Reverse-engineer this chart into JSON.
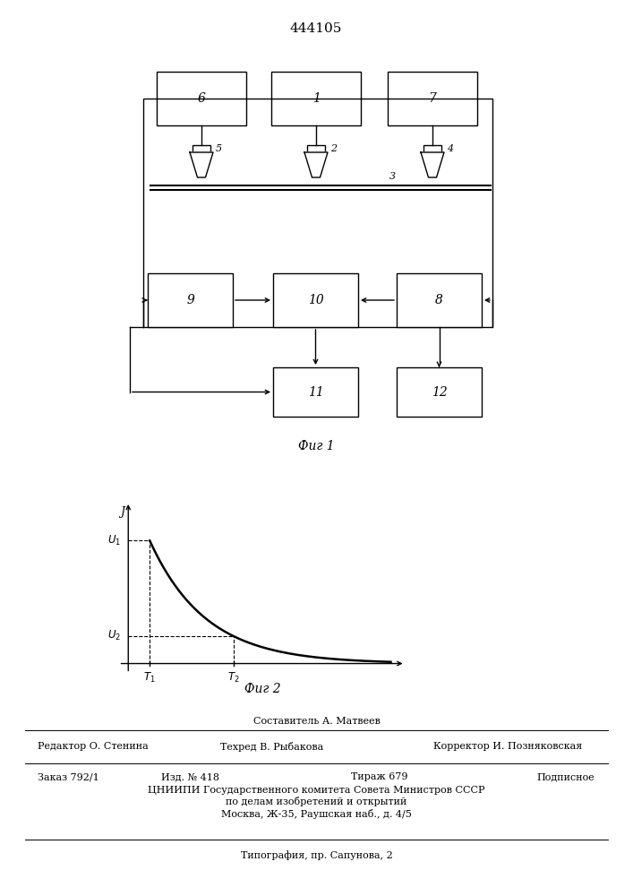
{
  "title": "444105",
  "fig1_caption": "Фиг 1",
  "fig2_caption": "Фиг 2",
  "bg_color": "#ffffff",
  "line_color": "#000000",
  "footer_sestavitel": "Составитель А. Матвеев",
  "footer_row1": [
    "Редактор О. Стенина",
    "Техред В. Рыбакова",
    "Корректор И. Позняковская"
  ],
  "footer_row2_cols": [
    "Заказ 792/1",
    "Изд. № 418",
    "Тираж 679",
    "Подписное"
  ],
  "footer_center": [
    "ЦНИИПИ Государственного комитета Совета Министров СССР",
    "по делам изобретений и открытий",
    "Москва, Ж-35, Раушская наб., д. 4/5"
  ],
  "footer_tip": "Типография, пр. Сапунова, 2"
}
